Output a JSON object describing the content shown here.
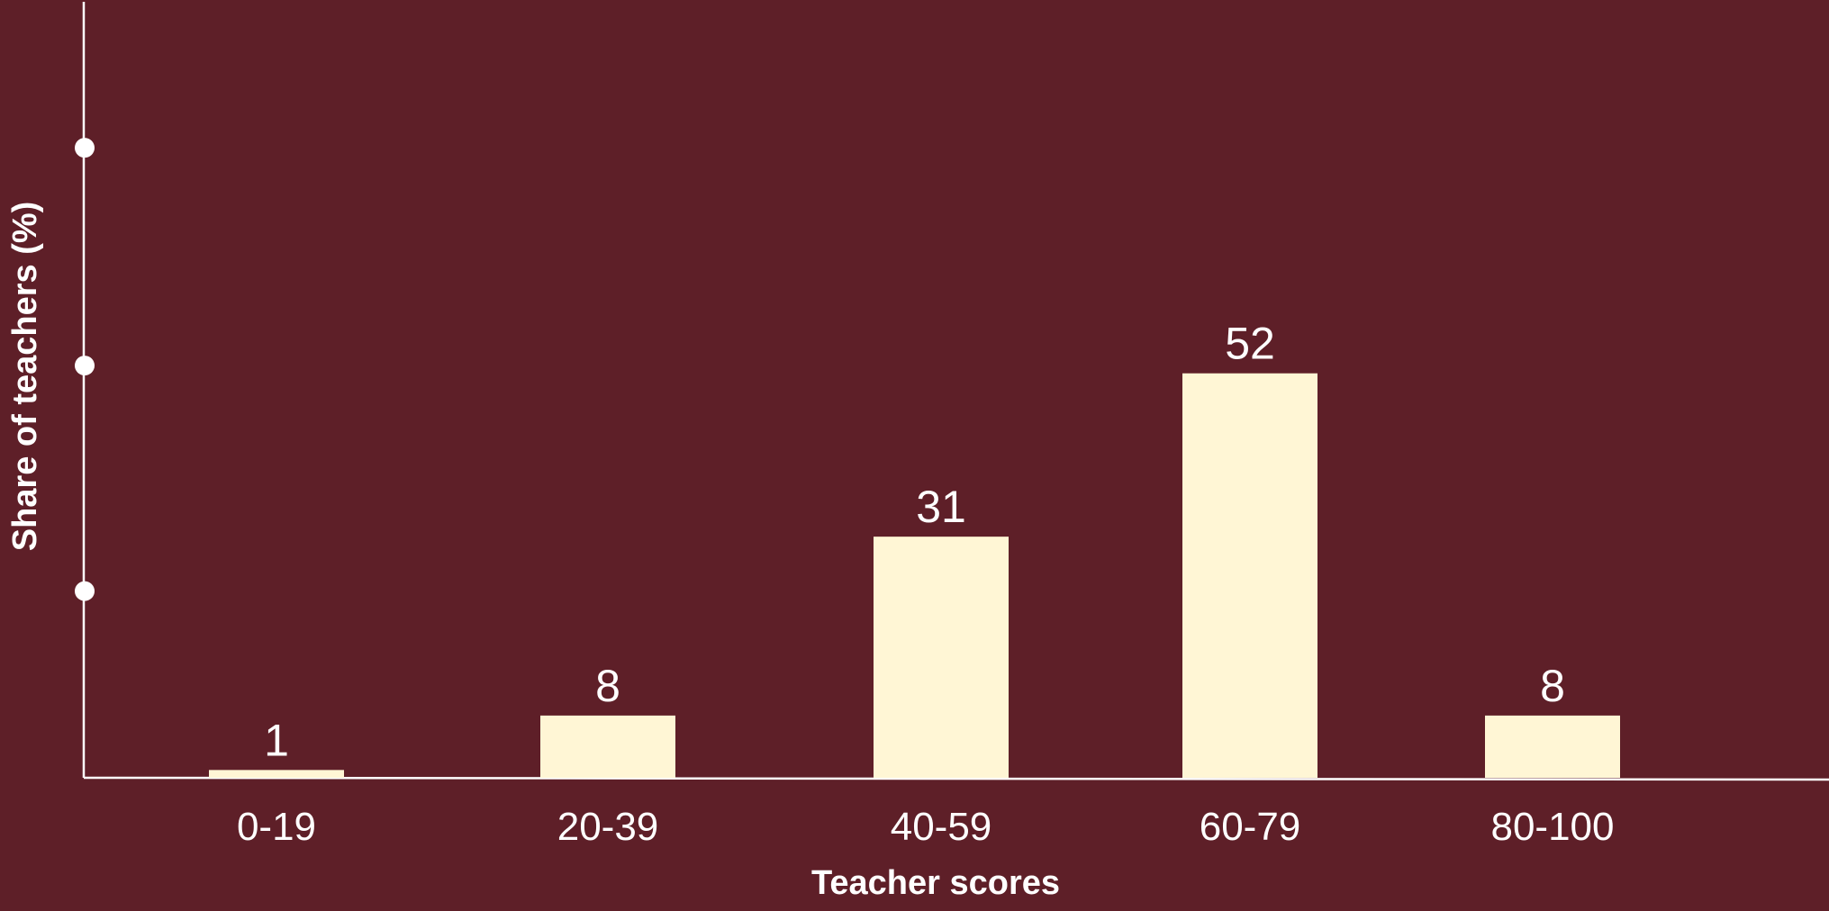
{
  "colors": {
    "background": "#5e1f28",
    "bar": "#fff6d5",
    "axis": "#ffffff",
    "text": "#ffffff"
  },
  "chart_data": {
    "type": "bar",
    "title": "",
    "xlabel": "Teacher scores",
    "ylabel": "Share of teachers (%)",
    "categories": [
      "0-19",
      "20-39",
      "40-59",
      "60-79",
      "80-100"
    ],
    "values": [
      1,
      8,
      31,
      52,
      8
    ],
    "data_labels": [
      "1",
      "8",
      "31",
      "52",
      "8"
    ],
    "ylim": [
      0,
      80
    ],
    "y_tick_values": [
      24,
      53,
      81
    ],
    "y_tick_labels_shown": false,
    "grid": false,
    "legend": "none"
  }
}
